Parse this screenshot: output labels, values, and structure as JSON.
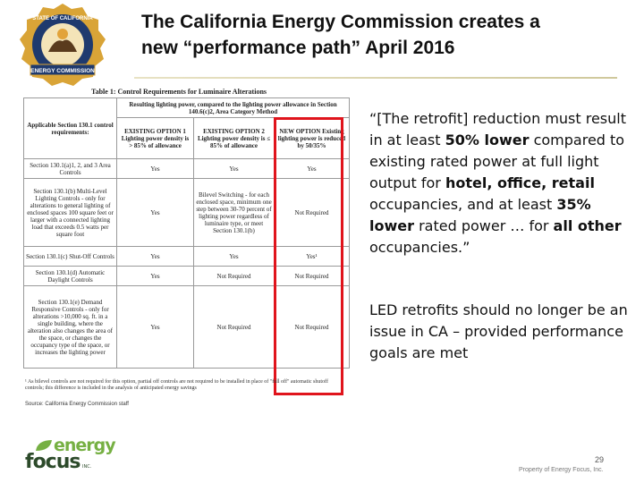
{
  "slide": {
    "title_line1": "The California Energy Commission creates a",
    "title_line2": "new “performance path” April 2016",
    "seal": {
      "text_top": "STATE OF CALIFORNIA",
      "text_banner": "ENERGY COMMISSION"
    },
    "table": {
      "caption": "Table 1: Control Requirements for Luminaire Alterations",
      "header_span": "Resulting lighting power, compared to the lighting power allowance in Section 140.6(c)2, Area Category Method",
      "header_first": "Applicable Section 130.1 control requirements:",
      "col1": "EXISTING OPTION 1 Lighting power density is > 85% of allowance",
      "col2": "EXISTING OPTION 2 Lighting power density is ≤ 85% of allowance",
      "col3": "NEW OPTION Existing lighting power is reduced by 50/35%",
      "rows": [
        {
          "label": "Section 130.1(a)1, 2, and 3 Area Controls",
          "c1": "Yes",
          "c2": "Yes",
          "c3": "Yes"
        },
        {
          "label": "Section 130.1(b) Multi-Level Lighting Controls - only for alterations to general lighting of enclosed spaces 100 square feet or larger with a connected lighting load that exceeds 0.5 watts per square foot",
          "c1": "Yes",
          "c2": "Bilevel Switching - for each enclosed space, minimum one step between 30-70 percent of lighting power regardless of luminaire type, or meet Section 130.1(b)",
          "c3": "Not Required"
        },
        {
          "label": "Section 130.1(c) Shut-Off Controls",
          "c1": "Yes",
          "c2": "Yes",
          "c3": "Yes¹"
        },
        {
          "label": "Section 130.1(d) Automatic Daylight Controls",
          "c1": "Yes",
          "c2": "Not Required",
          "c3": "Not Required"
        },
        {
          "label": "Section 130.1(e) Demand Responsive Controls - only for alterations >10,000 sq. ft. in a single building, where the alteration also changes the area of the space, or changes the occupancy type of the space, or increases the lighting power",
          "c1": "Yes",
          "c2": "Not Required",
          "c3": "Not Required"
        }
      ],
      "footnote": "¹ As bilevel controls are not required for this option, partial off controls are not required to be installed in place of \"full off\" automatic shutoff controls; this difference is included in the analysis of anticipated energy savings",
      "source": "Source: California Energy Commission staff"
    },
    "quote": {
      "p1": "“[The retrofit] reduction must result in at least ",
      "b1": "50% lower",
      "p2": " compared to existing rated power at full light output for ",
      "b2": "hotel, office, retail",
      "p3": " occupancies, and at least ",
      "b3": "35% lower",
      "p4": " rated power … for ",
      "b4": "all other",
      "p5": " occupancies.”"
    },
    "note": "LED retrofits should no longer be an issue in CA  – provided performance goals are met",
    "logo": {
      "energy": "energy",
      "focus": "focus",
      "inc": "INC."
    },
    "page_number": "29",
    "property": "Property of Energy Focus, Inc.",
    "colors": {
      "highlight_border": "#e0141c",
      "logo_green": "#76b043",
      "logo_dark": "#2c4a2a",
      "seal_blue": "#1f3a6e",
      "seal_gold": "#d9a437"
    }
  }
}
